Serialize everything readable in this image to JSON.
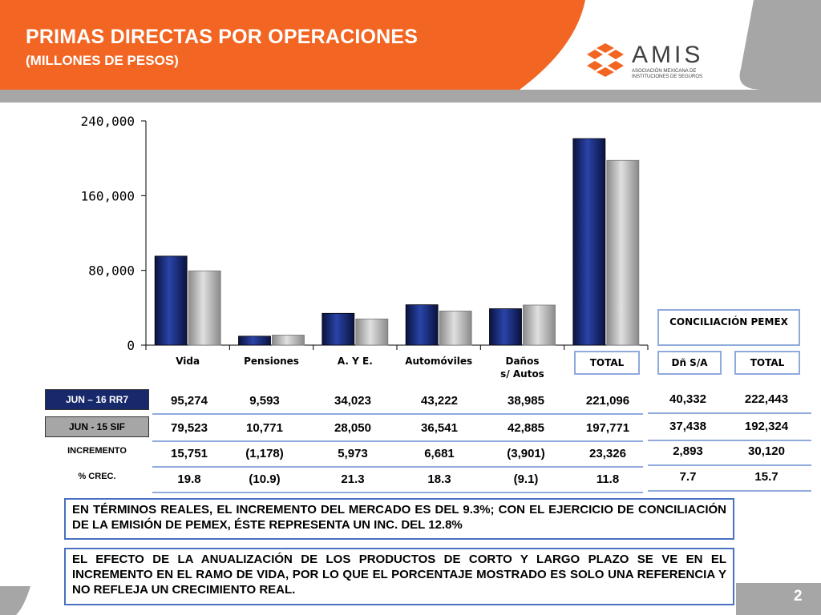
{
  "header": {
    "title": "PRIMAS DIRECTAS POR OPERACIONES",
    "subtitle": "(MILLONES DE PESOS)",
    "logo_name": "AMIS",
    "logo_sub": "ASOCIACIÓN MEXICANA DE INSTITUCIONES DE SEGUROS"
  },
  "colors": {
    "orange": "#f26522",
    "series1": "#2a44a8",
    "series2": "#b8b8b8"
  },
  "chart_data": {
    "type": "bar",
    "categories": [
      "Vida",
      "Pensiones",
      "A. Y E.",
      "Automóviles",
      "Daños s/ Autos",
      "TOTAL"
    ],
    "series": [
      {
        "name": "JUN – 16 RR7",
        "values": [
          95274,
          9593,
          34023,
          43222,
          38985,
          221096
        ]
      },
      {
        "name": "JUN - 15 SIF",
        "values": [
          79523,
          10771,
          28050,
          36541,
          42885,
          197771
        ]
      }
    ],
    "yticks": [
      "0",
      "80,000",
      "160,000",
      "240,000"
    ],
    "ylim": [
      0,
      240000
    ],
    "grid": false,
    "legend": "none"
  },
  "table": {
    "rows": [
      {
        "label": "JUN – 16 RR7",
        "values": [
          "95,274",
          "9,593",
          "34,023",
          "43,222",
          "38,985",
          "221,096"
        ]
      },
      {
        "label": "JUN - 15 SIF",
        "values": [
          "79,523",
          "10,771",
          "28,050",
          "36,541",
          "42,885",
          "197,771"
        ]
      },
      {
        "label": "INCREMENTO",
        "values": [
          "15,751",
          "(1,178)",
          "5,973",
          "6,681",
          "(3,901)",
          "23,326"
        ]
      },
      {
        "label": "% CREC.",
        "values": [
          "19.8",
          "(10.9)",
          "21.3",
          "18.3",
          "(9.1)",
          "11.8"
        ]
      }
    ]
  },
  "pemex": {
    "title": "CONCILIACIÓN PEMEX",
    "col1": "Dñ S/A",
    "col2": "TOTAL",
    "rows": [
      [
        "40,332",
        "222,443"
      ],
      [
        "37,438",
        "192,324"
      ],
      [
        "2,893",
        "30,120"
      ],
      [
        "7.7",
        "15.7"
      ]
    ]
  },
  "total_box": "TOTAL",
  "notes": {
    "note1": "EN TÉRMINOS REALES, EL INCREMENTO DEL MERCADO ES DEL 9.3%;  CON EL EJERCICIO DE CONCILIACIÓN DE LA EMISIÓN DE PEMEX, ÉSTE REPRESENTA  UN INC. DEL 12.8%",
    "note2": "EL EFECTO DE LA ANUALIZACIÓN DE LOS PRODUCTOS DE CORTO Y LARGO PLAZO SE VE EN EL INCREMENTO EN EL RAMO DE VIDA, POR LO QUE EL PORCENTAJE MOSTRADO ES SOLO UNA REFERENCIA Y NO REFLEJA UN CRECIMIENTO REAL."
  },
  "page_number": "2"
}
